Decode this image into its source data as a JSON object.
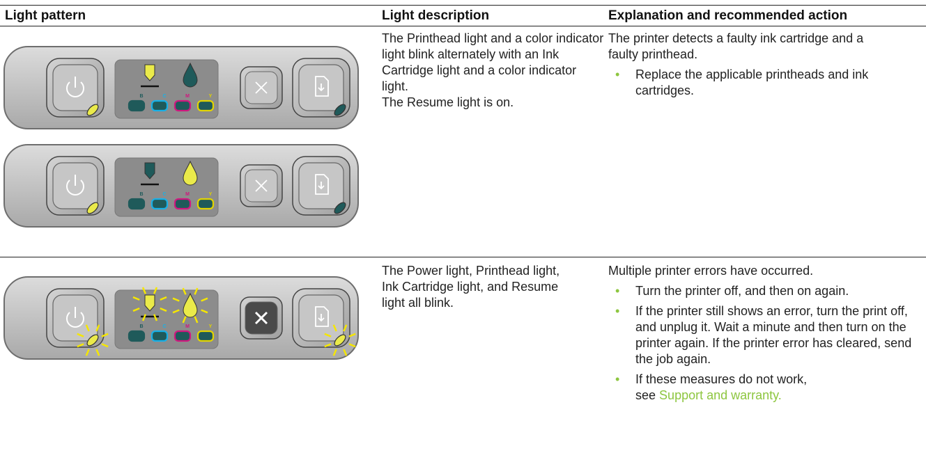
{
  "table": {
    "headers": [
      "Light pattern",
      "Light description",
      "Explanation and recommended action"
    ],
    "rows": [
      {
        "description": [
          "The Printhead light and a color indicator light blink alternately with an Ink Cartridge light and a color indicator light.",
          "The Resume light is on."
        ],
        "explanation": {
          "text": "The printer detects a faulty ink cartridge and a faulty printhead.",
          "bullets": [
            "Replace the applicable printheads and ink cartridges."
          ]
        }
      },
      {
        "description": [
          "The Power light, Printhead light, Ink Cartridge light, and Resume light all blink."
        ],
        "explanation": {
          "text": "Multiple printer errors have occurred.",
          "bullets": [
            "Turn the printer off, and then on again.",
            "If the printer still shows an error, turn the print off, and unplug it. Wait a minute and then turn on the printer again. If the printer error has cleared, send the job again.",
            "If these measures do not work, see"
          ],
          "link": "Support and warranty."
        }
      }
    ]
  },
  "panel_labels": [
    "B",
    "C",
    "M",
    "Y"
  ]
}
